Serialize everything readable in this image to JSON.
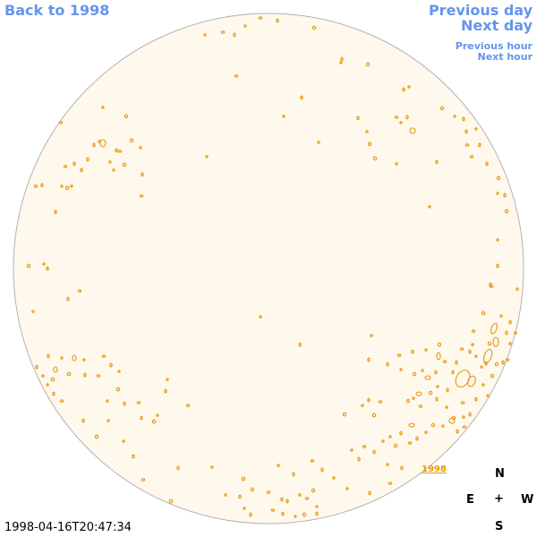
{
  "nav": {
    "back_label": "Back to 1998",
    "previous_day": "Previous day",
    "next_day": "Next day",
    "previous_hour": "Previous hour",
    "next_hour": "Next hour"
  },
  "disc": {
    "year_label": "1998"
  },
  "compass": {
    "north": "N",
    "east": "E",
    "center": "+",
    "west": "W",
    "south": "S"
  },
  "timestamp": "1998-04-16T20:47:34",
  "colors": {
    "link": "#6495ed",
    "disc_fill": "#fff8ec",
    "disc_stroke": "#b3b3b3",
    "contour": "#e8960c"
  }
}
